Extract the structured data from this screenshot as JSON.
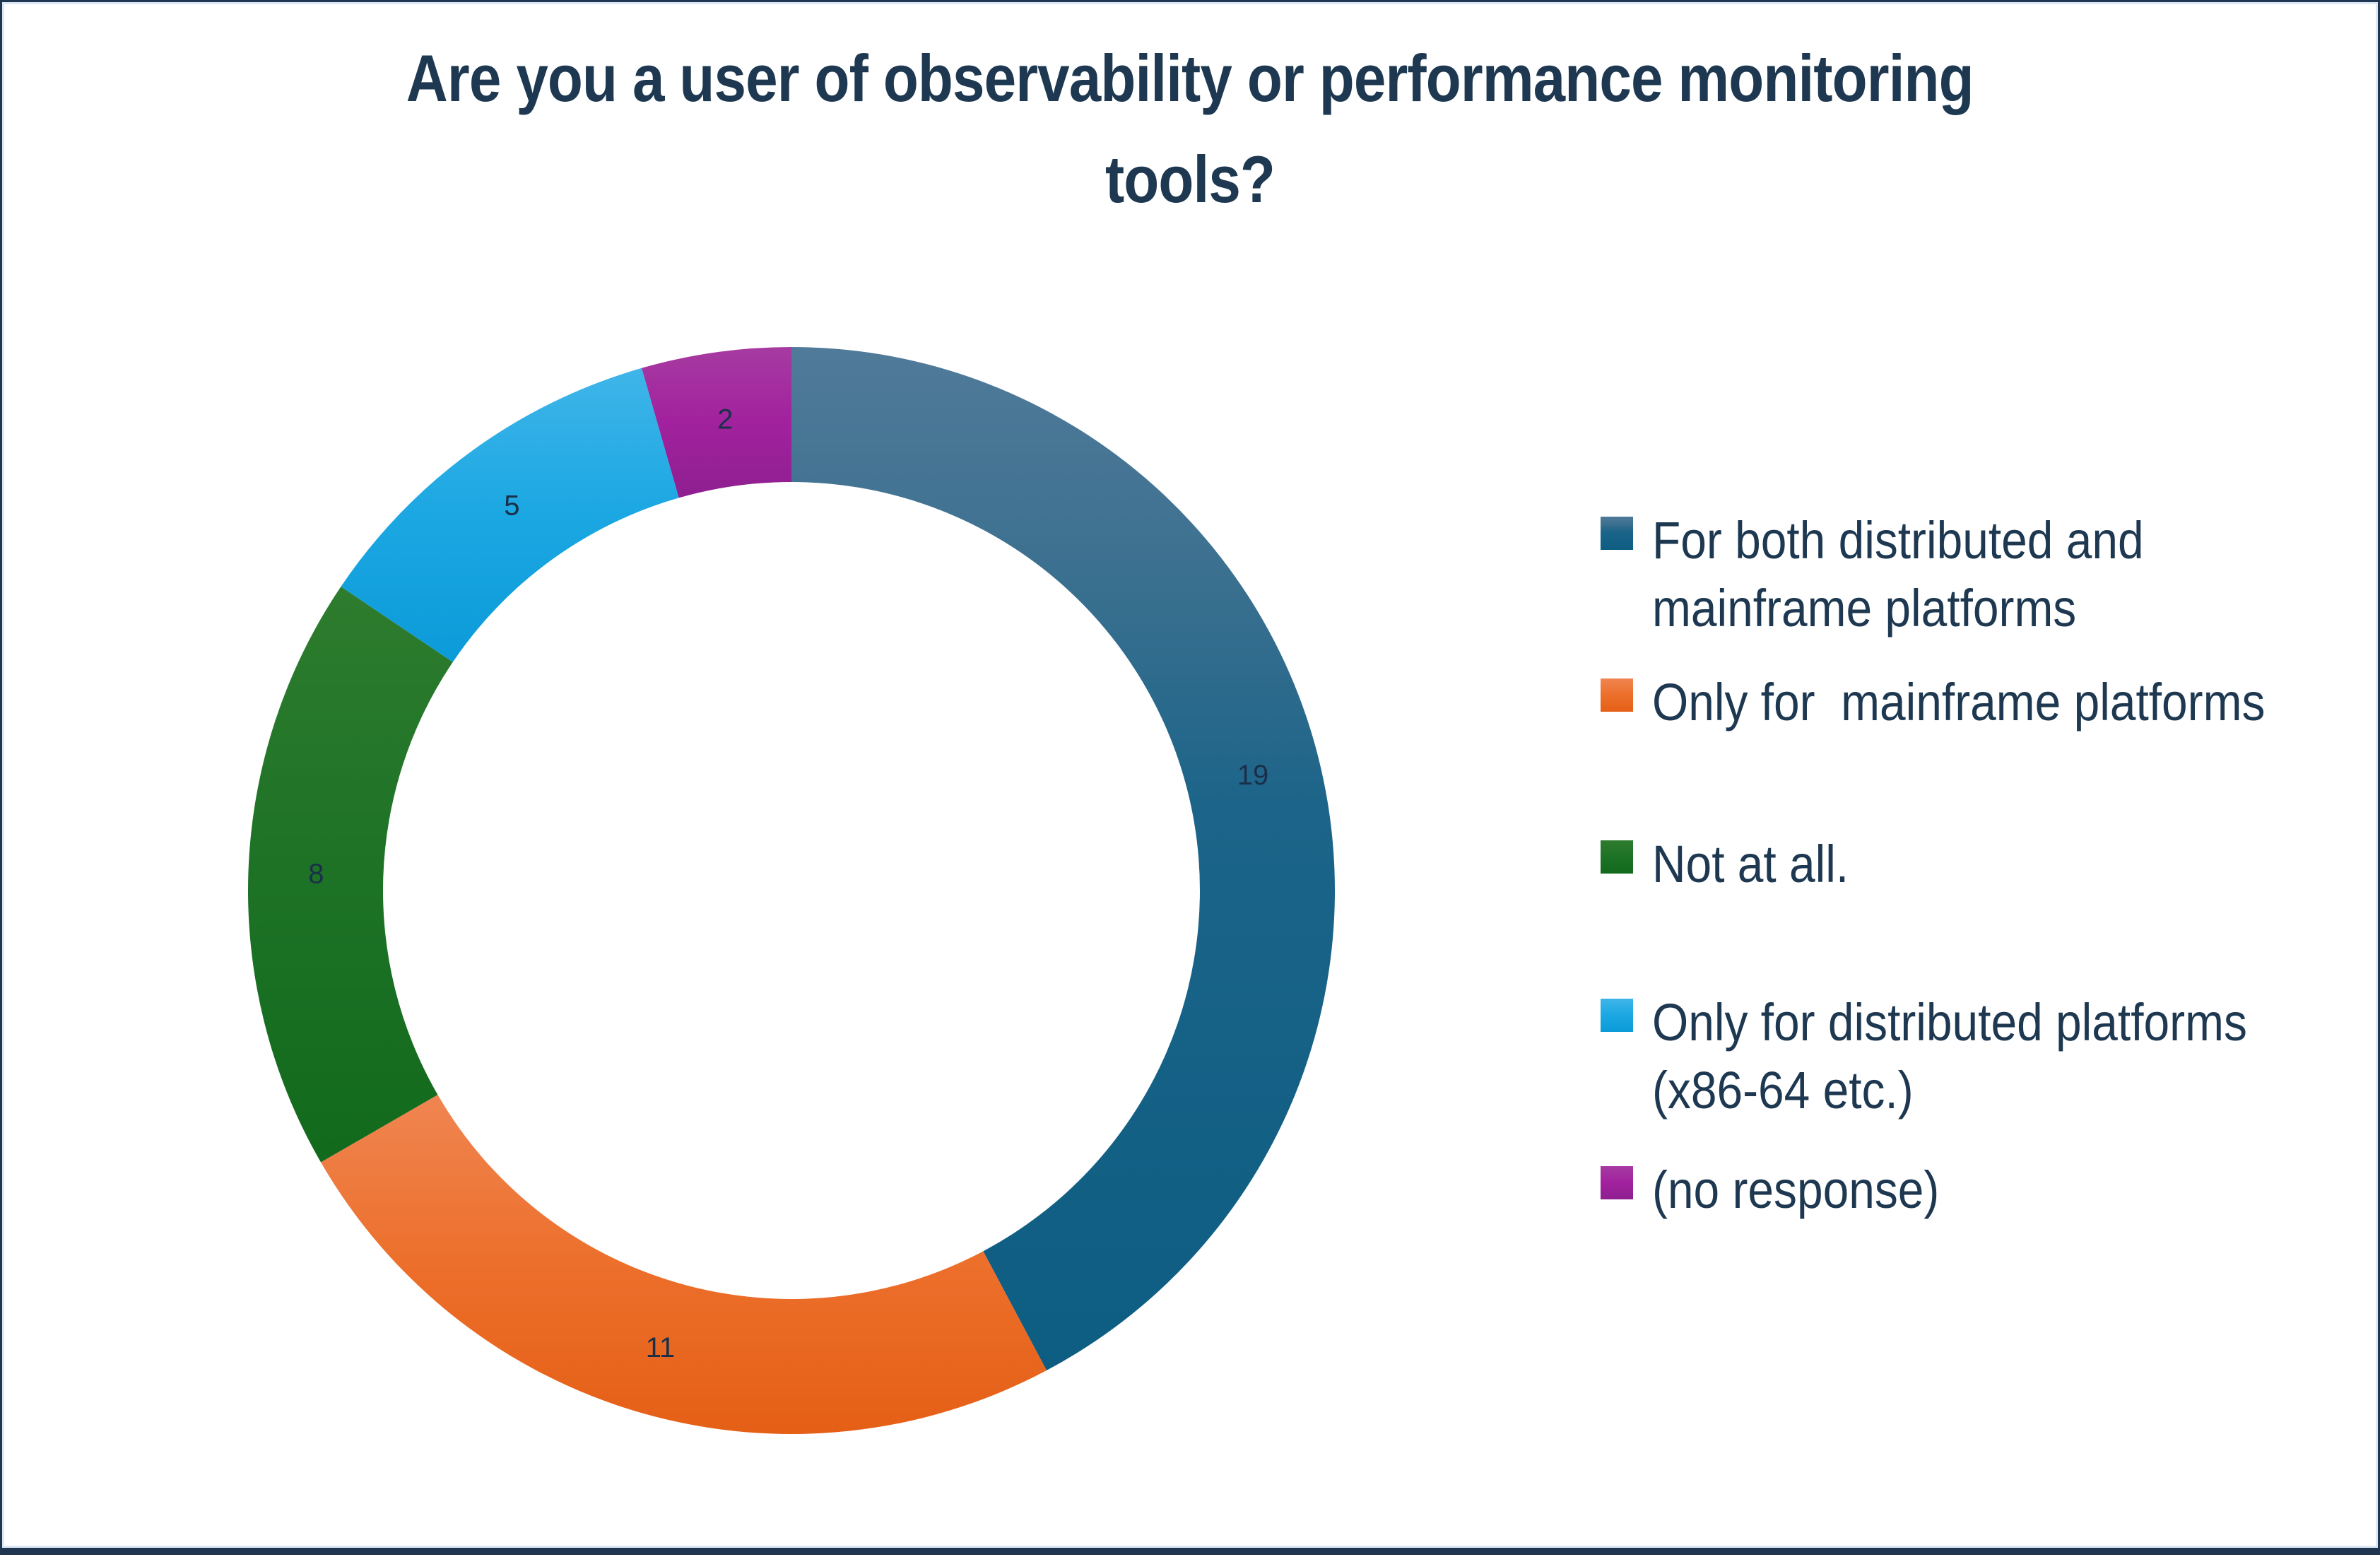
{
  "page": {
    "background": "#ffffff",
    "frame": {
      "outer_color": "#203650",
      "inner_line_color": "#dbe7f5"
    }
  },
  "chart_data": {
    "type": "pie",
    "subtype": "donut",
    "title": "Are you a user of observability or performance monitoring tools?",
    "title_lines": [
      "Are you a user of observability or performance monitoring",
      "tools?"
    ],
    "total": 45,
    "start_angle_deg": 0,
    "direction": "clockwise",
    "hole_radius_ratio": 0.75,
    "legend_position": "right",
    "grid": false,
    "title_color": "#1d3850",
    "legend_text_color": "#1d3850",
    "value_label_color": "#1a3049",
    "series": [
      {
        "label": "For both distributed and mainframe platforms",
        "legend_lines": [
          "For both distributed and",
          "mainframe platforms"
        ],
        "value": 19,
        "gradient": [
          [
            0,
            "#507a99"
          ],
          [
            0.2,
            "#3e7190"
          ],
          [
            0.45,
            "#1c6489"
          ],
          [
            1,
            "#0d5d82"
          ]
        ]
      },
      {
        "label": "Only for  mainframe platforms",
        "legend_lines": [
          "Only for  mainframe platforms"
        ],
        "value": 11,
        "gradient": [
          [
            0,
            "#f08551"
          ],
          [
            0.5,
            "#ec6f2b"
          ],
          [
            1,
            "#e55f16"
          ]
        ]
      },
      {
        "label": "Not at all.",
        "legend_lines": [
          "Not at all."
        ],
        "value": 8,
        "gradient": [
          [
            0,
            "#2e7c2e"
          ],
          [
            0.5,
            "#1d7226"
          ],
          [
            1,
            "#126a1c"
          ]
        ]
      },
      {
        "label": "Only for distributed platforms (x86-64 etc.)",
        "legend_lines": [
          "Only for distributed platforms",
          "(x86-64 etc.)"
        ],
        "value": 5,
        "gradient": [
          [
            0,
            "#3fb5e9"
          ],
          [
            0.5,
            "#1ba7e2"
          ],
          [
            1,
            "#0c9bd9"
          ]
        ]
      },
      {
        "label": "(no response)",
        "legend_lines": [
          "(no response)"
        ],
        "value": 2,
        "gradient": [
          [
            0,
            "#a63ba1"
          ],
          [
            0.5,
            "#a2219e"
          ],
          [
            1,
            "#8e2090"
          ]
        ]
      }
    ]
  }
}
